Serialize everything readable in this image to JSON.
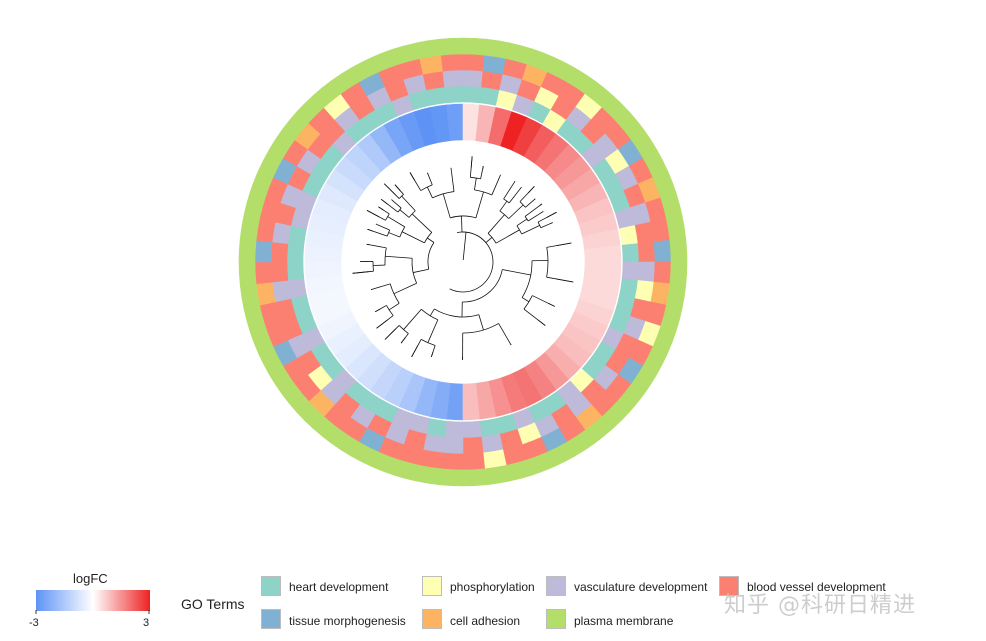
{
  "chart_data": {
    "type": "circular-heatmap",
    "title": "",
    "logfc": {
      "title": "logFC",
      "min": -3,
      "max": 3,
      "min_label": "-3",
      "max_label": "3",
      "segments": [
        -2.6,
        -2.3,
        -2.0,
        -1.6,
        -1.3,
        -1.1,
        -0.9,
        -0.7,
        -0.5,
        -0.4,
        -0.3,
        -0.2,
        -0.2,
        -0.25,
        -0.3,
        -0.35,
        -0.4,
        -0.45,
        -0.5,
        -0.6,
        -0.8,
        -1.0,
        -1.2,
        -1.5,
        -2.0,
        -2.5,
        -2.8,
        -3.0,
        -2.9,
        -2.7,
        0.4,
        1.0,
        2.0,
        3.0,
        2.6,
        2.2,
        1.9,
        1.6,
        1.4,
        1.2,
        1.0,
        0.8,
        0.7,
        0.6,
        0.5,
        0.5,
        0.5,
        0.5,
        0.6,
        0.7,
        0.8,
        0.9,
        1.1,
        1.4,
        1.7,
        1.9,
        1.8,
        1.5,
        1.2,
        0.9
      ]
    },
    "go_terms": {
      "title": "GO Terms",
      "categories": [
        {
          "id": "heart",
          "label": "heart development",
          "color": "#8dd3c7"
        },
        {
          "id": "phos",
          "label": "phosphorylation",
          "color": "#ffffb3"
        },
        {
          "id": "vasc",
          "label": "vasculature development",
          "color": "#bebada"
        },
        {
          "id": "blood",
          "label": "blood vessel development",
          "color": "#fb8072"
        },
        {
          "id": "tissue",
          "label": "tissue morphogenesis",
          "color": "#80b1d3"
        },
        {
          "id": "adhesion",
          "label": "cell adhesion",
          "color": "#fdb462"
        },
        {
          "id": "plasma",
          "label": "plasma membrane",
          "color": "#b3de69"
        }
      ],
      "ring_assignments": [
        [
          "heart",
          "heart",
          "phos",
          "vasc",
          "heart",
          "phos",
          "heart",
          "heart",
          "vasc",
          "heart",
          "heart",
          "heart",
          "vasc",
          "phos",
          "heart",
          "vasc",
          "heart",
          "heart",
          "heart",
          "vasc",
          "heart",
          "heart",
          "phos",
          "vasc",
          "heart",
          "heart",
          "vasc",
          "heart",
          "heart",
          "vasc",
          "vasc",
          "heart",
          "vasc",
          "vasc",
          "heart",
          "heart",
          "heart",
          "vasc",
          "heart",
          "heart",
          "vasc",
          "heart",
          "heart",
          "vasc",
          "heart",
          "heart",
          "heart",
          "vasc",
          "vasc",
          "heart",
          "heart",
          "heart",
          "vasc",
          "heart",
          "heart",
          "heart",
          "vasc",
          "heart",
          "heart",
          "heart"
        ],
        [
          "vasc",
          "blood",
          "vasc",
          "blood",
          "phos",
          "blood",
          "vasc",
          "blood",
          "vasc",
          "phos",
          "vasc",
          "blood",
          "vasc",
          "blood",
          "blood",
          "vasc",
          "phos",
          "blood",
          "vasc",
          "blood",
          "blood",
          "vasc",
          "blood",
          "vasc",
          "blood",
          "vasc",
          "phos",
          "blood",
          "vasc",
          "blood",
          "vasc",
          "vasc",
          "blood",
          "vasc",
          "blood",
          "vasc",
          "blood",
          "vasc",
          "phos",
          "blood",
          "vasc",
          "blood",
          "blood",
          "vasc",
          "blood",
          "blood",
          "vasc",
          "blood",
          "vasc",
          "blood",
          "vasc",
          "blood",
          "blood",
          "vasc",
          "blood",
          "vasc",
          "blood",
          "vasc",
          "blood",
          "vasc"
        ],
        [
          "blood",
          "tissue",
          "blood",
          "adhesion",
          "blood",
          "blood",
          "phos",
          "blood",
          "blood",
          "tissue",
          "blood",
          "adhesion",
          "blood",
          "blood",
          "tissue",
          "blood",
          "adhesion",
          "blood",
          "phos",
          "blood",
          "tissue",
          "blood",
          "blood",
          "adhesion",
          "blood",
          "tissue",
          "blood",
          "blood",
          "phos",
          "blood",
          "blood",
          "blood",
          "blood",
          "blood",
          "tissue",
          "blood",
          "blood",
          "adhesion",
          "blood",
          "blood",
          "tissue",
          "blood",
          "blood",
          "adhesion",
          "blood",
          "tissue",
          "blood",
          "blood",
          "blood",
          "tissue",
          "blood",
          "adhesion",
          "blood",
          "phos",
          "blood",
          "tissue",
          "blood",
          "blood",
          "adhesion",
          "blood"
        ],
        [
          "plasma",
          "plasma",
          "plasma",
          "plasma",
          "plasma",
          "plasma",
          "plasma",
          "plasma",
          "plasma",
          "plasma",
          "plasma",
          "plasma",
          "plasma",
          "plasma",
          "plasma",
          "plasma",
          "plasma",
          "plasma",
          "plasma",
          "plasma",
          "plasma",
          "plasma",
          "plasma",
          "plasma",
          "plasma",
          "plasma",
          "plasma",
          "plasma",
          "plasma",
          "plasma",
          "plasma",
          "plasma",
          "plasma",
          "plasma",
          "plasma",
          "plasma",
          "plasma",
          "plasma",
          "plasma",
          "plasma",
          "plasma",
          "plasma",
          "plasma",
          "plasma",
          "plasma",
          "plasma",
          "plasma",
          "plasma",
          "plasma",
          "plasma",
          "plasma",
          "plasma",
          "plasma",
          "plasma",
          "plasma",
          "plasma",
          "plasma",
          "plasma",
          "plasma",
          "plasma"
        ]
      ]
    }
  },
  "watermark": "知乎 @科研日精进"
}
